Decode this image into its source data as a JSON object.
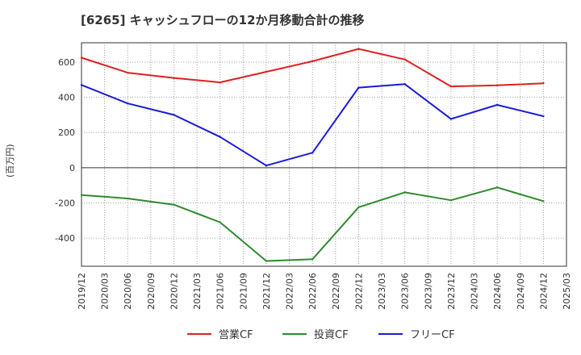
{
  "chart_data": {
    "type": "line",
    "title": "[6265]  キャッシュフローの12か月移動合計の推移",
    "ylabel": "(百万円)",
    "xlabel": "",
    "ylim": [
      -560,
      710
    ],
    "yticks": [
      600,
      400,
      200,
      0,
      -200,
      -400
    ],
    "ytick_labels": [
      "600",
      "400",
      "200",
      "0",
      "-200",
      "-400"
    ],
    "x_ticks": [
      "2019/12",
      "2020/03",
      "2020/06",
      "2020/09",
      "2020/12",
      "2021/03",
      "2021/06",
      "2021/09",
      "2021/12",
      "2022/03",
      "2022/06",
      "2022/09",
      "2022/12",
      "2023/03",
      "2023/06",
      "2023/09",
      "2023/12",
      "2024/03",
      "2024/06",
      "2024/09",
      "2024/12",
      "2025/03"
    ],
    "grid": true,
    "legend_position": "bottom",
    "series": [
      {
        "name": "営業CF",
        "color": "#e02020",
        "x": [
          "2019/12",
          "2020/06",
          "2020/12",
          "2021/06",
          "2021/12",
          "2022/06",
          "2022/12",
          "2023/06",
          "2023/12",
          "2024/06",
          "2024/12"
        ],
        "values": [
          625,
          540,
          510,
          485,
          545,
          605,
          675,
          615,
          462,
          468,
          480
        ]
      },
      {
        "name": "投資CF",
        "color": "#2e8b2e",
        "x": [
          "2019/12",
          "2020/06",
          "2020/12",
          "2021/06",
          "2021/12",
          "2022/06",
          "2022/12",
          "2023/06",
          "2023/12",
          "2024/06",
          "2024/12"
        ],
        "values": [
          -155,
          -175,
          -210,
          -310,
          -530,
          -520,
          -225,
          -140,
          -185,
          -112,
          -190
        ]
      },
      {
        "name": "フリーCF",
        "color": "#1a1adc",
        "x": [
          "2019/12",
          "2020/06",
          "2020/12",
          "2021/06",
          "2021/12",
          "2022/06",
          "2022/12",
          "2023/06",
          "2023/12",
          "2024/06",
          "2024/12"
        ],
        "values": [
          470,
          365,
          300,
          175,
          12,
          85,
          455,
          475,
          277,
          357,
          293
        ]
      }
    ]
  }
}
